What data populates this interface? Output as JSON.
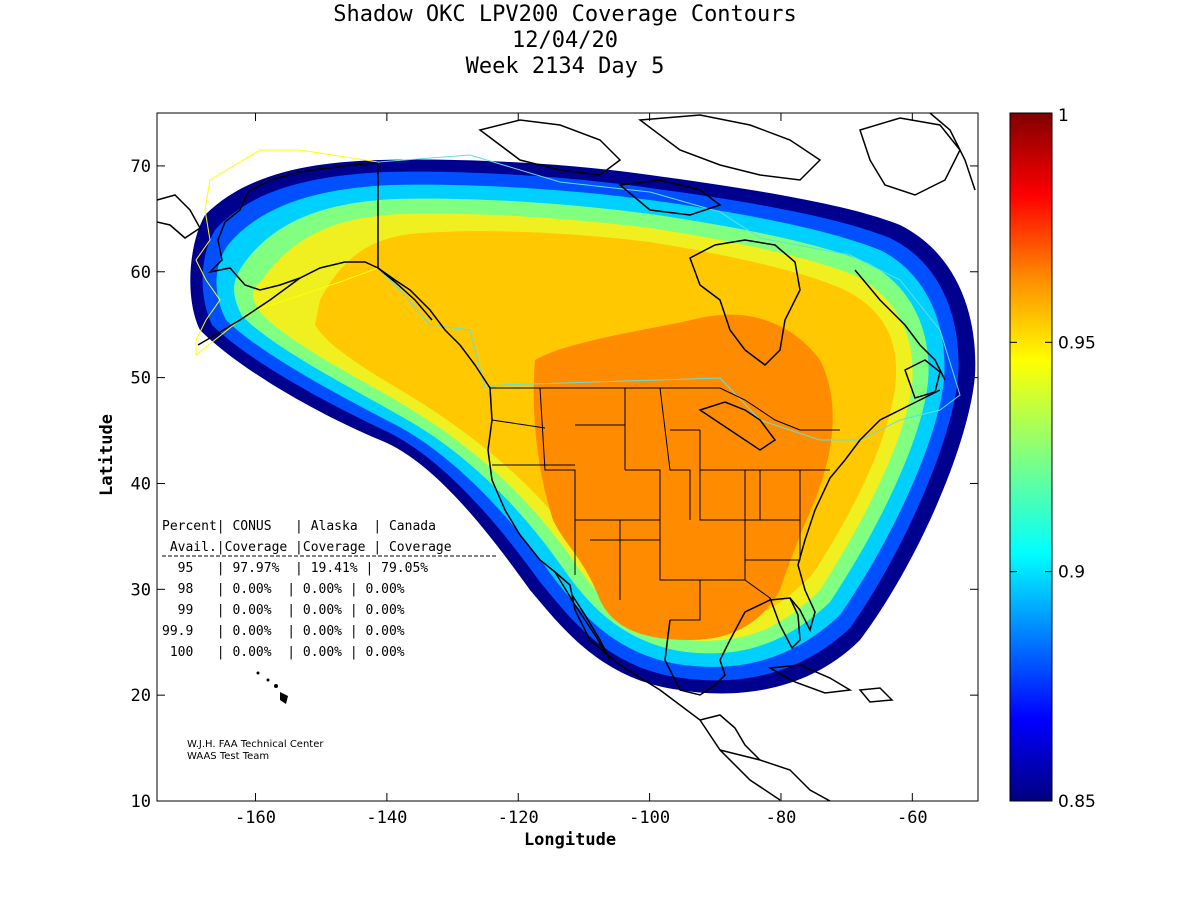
{
  "titles": [
    "Shadow OKC LPV200 Coverage Contours",
    "12/04/20",
    "Week 2134 Day 5"
  ],
  "axes": {
    "xlabel": "Longitude",
    "ylabel": "Latitude",
    "xlim": [
      -175,
      -50
    ],
    "ylim": [
      10,
      75
    ],
    "xticks": [
      "-160",
      "-140",
      "-120",
      "-100",
      "-80",
      "-60"
    ],
    "yticks": [
      "10",
      "20",
      "30",
      "40",
      "50",
      "60",
      "70"
    ]
  },
  "colorbar": {
    "range": [
      0.85,
      1
    ],
    "ticks": [
      "0.85",
      "0.9",
      "0.95",
      "1"
    ],
    "colormap": "jet"
  },
  "coverage_table": {
    "header1": "Percent| CONUS   | Alaska  | Canada",
    "header2": " Avail.|Coverage |Coverage | Coverage",
    "rows": [
      "  95   | 97.97%  | 19.41% | 79.05%",
      "  98   | 0.00%  | 0.00% | 0.00%",
      "  99   | 0.00%  | 0.00% | 0.00%",
      "99.9   | 0.00%  | 0.00% | 0.00%",
      " 100   | 0.00%  | 0.00% | 0.00%"
    ]
  },
  "credit": [
    "W.J.H. FAA Technical Center",
    "WAAS Test Team"
  ],
  "colors": {
    "band_outer": "#00008f",
    "band_blue": "#0050ff",
    "band_cyan": "#00d0ff",
    "band_green": "#80ff80",
    "band_yellow": "#f0f020",
    "band_gold": "#ffc800",
    "band_orange": "#ff8c00",
    "ring_lines": "#ffff00"
  }
}
